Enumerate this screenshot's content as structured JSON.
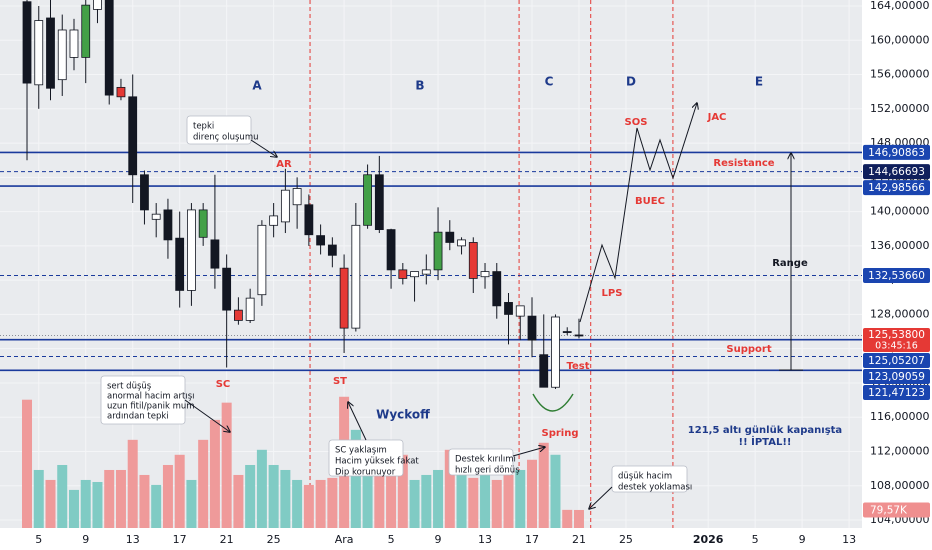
{
  "chart_data": {
    "type": "candlestick",
    "xlim": [
      -2.3,
      71.1
    ],
    "ylim": [
      103.07,
      164.7
    ],
    "yticks": [
      {
        "value": 164,
        "label": "164,00000"
      },
      {
        "value": 160,
        "label": "160,00000"
      },
      {
        "value": 156,
        "label": "156,00000"
      },
      {
        "value": 152,
        "label": "152,00000"
      },
      {
        "value": 148,
        "label": "148,00000"
      },
      {
        "value": 144,
        "label": "144,00000"
      },
      {
        "value": 140,
        "label": "140,00000"
      },
      {
        "value": 136,
        "label": "136,00000"
      },
      {
        "value": 132,
        "label": "132,00000"
      },
      {
        "value": 128,
        "label": "128,00000"
      },
      {
        "value": 124,
        "label": "124,00000"
      },
      {
        "value": 120,
        "label": "120,00000"
      },
      {
        "value": 116,
        "label": "116,00000"
      },
      {
        "value": 112,
        "label": "112,00000"
      },
      {
        "value": 108,
        "label": "108,00000"
      },
      {
        "value": 104,
        "label": "104,00000"
      }
    ],
    "xticks": [
      {
        "value": 1,
        "label": "5"
      },
      {
        "value": 5,
        "label": "9"
      },
      {
        "value": 9,
        "label": "13"
      },
      {
        "value": 13,
        "label": "17"
      },
      {
        "value": 17,
        "label": "21"
      },
      {
        "value": 21,
        "label": "25"
      },
      {
        "value": 27,
        "label": "Ara"
      },
      {
        "value": 31,
        "label": "5"
      },
      {
        "value": 35,
        "label": "9"
      },
      {
        "value": 39,
        "label": "13"
      },
      {
        "value": 43,
        "label": "17"
      },
      {
        "value": 47,
        "label": "21"
      },
      {
        "value": 51,
        "label": "25"
      },
      {
        "value": 58,
        "label": "2026",
        "bold": true
      },
      {
        "value": 62,
        "label": "5"
      },
      {
        "value": 66,
        "label": "9"
      },
      {
        "value": 70,
        "label": "13"
      }
    ],
    "grid": true,
    "candles": {
      "open": [
        164.5,
        154.8,
        162.6,
        155.4,
        158,
        158,
        163.6,
        165,
        154.5,
        153.4,
        144.3,
        139.1,
        140.2,
        136.9,
        130.8,
        137,
        136.7,
        133.4,
        128.5,
        127.3,
        130.3,
        138.4,
        138.8,
        140.8,
        140.8,
        137.2,
        136.1,
        133.4,
        126.4,
        138.4,
        144.3,
        137.9,
        133.2,
        132.4,
        132.7,
        133.2,
        137.6,
        136,
        136.4,
        132.4,
        133,
        129.4,
        127.8,
        127.8,
        123.3,
        119.5,
        126,
        125.6
      ],
      "high": [
        165.5,
        164,
        165,
        163,
        162.5,
        165,
        165.5,
        165.5,
        155.5,
        156,
        144.8,
        141,
        141.5,
        140,
        141,
        141,
        144.3,
        135,
        130,
        131,
        139,
        141,
        145,
        144,
        142,
        138.5,
        137,
        135,
        141,
        145.5,
        146.5,
        138,
        134,
        133,
        135,
        140.5,
        139,
        137,
        137,
        134,
        134,
        130.5,
        129,
        130,
        128,
        128,
        126.5,
        127.5
      ],
      "low": [
        146,
        152,
        153,
        153.5,
        156.5,
        155,
        162,
        152.5,
        153,
        141,
        138.5,
        137,
        134.5,
        128.8,
        129,
        136,
        131,
        121.8,
        126.8,
        127,
        129,
        137,
        137.5,
        138,
        136,
        135,
        133.5,
        123.5,
        126,
        138,
        137.5,
        131,
        131.5,
        129.5,
        131.5,
        132,
        135.5,
        135,
        130.5,
        131,
        127.5,
        124.5,
        125,
        123,
        119.5,
        119.3,
        125.6,
        125.2
      ],
      "close": [
        155,
        162.3,
        154.4,
        161.2,
        161.2,
        164.1,
        164.8,
        153.6,
        153.4,
        144.3,
        140.2,
        139.7,
        136.7,
        130.8,
        140.2,
        140.2,
        133.4,
        128.5,
        127.3,
        129.9,
        138.4,
        139.5,
        142.5,
        142.7,
        137.3,
        136.1,
        134.9,
        126.4,
        138.4,
        144.3,
        137.9,
        133.2,
        132.2,
        133,
        133.2,
        137.6,
        136.4,
        136.7,
        132.2,
        133,
        129,
        128,
        129,
        125,
        119.5,
        127.7,
        125.9,
        125.5
      ],
      "colors": [
        "#131722",
        "#ffffff",
        "#131722",
        "#ffffff",
        "#ffffff",
        "#43a047",
        "#ffffff",
        "#131722",
        "#e53935",
        "#131722",
        "#131722",
        "#ffffff",
        "#131722",
        "#131722",
        "#ffffff",
        "#43a047",
        "#131722",
        "#131722",
        "#e53935",
        "#ffffff",
        "#ffffff",
        "#ffffff",
        "#ffffff",
        "#ffffff",
        "#131722",
        "#131722",
        "#131722",
        "#e53935",
        "#ffffff",
        "#43a047",
        "#131722",
        "#131722",
        "#e53935",
        "#ffffff",
        "#ffffff",
        "#43a047",
        "#131722",
        "#ffffff",
        "#e53935",
        "#ffffff",
        "#131722",
        "#131722",
        "#ffffff",
        "#131722",
        "#131722",
        "#ffffff",
        "#131722",
        "#131722"
      ]
    },
    "volume": {
      "vlim": [
        0,
        600
      ],
      "values": [
        566,
        256,
        212,
        278,
        168,
        212,
        203,
        256,
        256,
        389,
        234,
        190,
        278,
        323,
        212,
        389,
        477,
        553,
        234,
        278,
        345,
        278,
        256,
        212,
        190,
        212,
        221,
        579,
        433,
        323,
        301,
        234,
        323,
        212,
        234,
        256,
        345,
        256,
        221,
        256,
        212,
        234,
        256,
        301,
        376,
        323,
        80,
        79.57
      ],
      "value_labels": [
        null,
        null,
        null,
        null,
        null,
        null,
        null,
        null,
        null,
        null,
        null,
        null,
        null,
        null,
        null,
        null,
        null,
        null,
        null,
        null,
        null,
        null,
        null,
        null,
        null,
        null,
        null,
        null,
        null,
        null,
        null,
        null,
        null,
        null,
        null,
        null,
        null,
        null,
        null,
        null,
        null,
        null,
        null,
        null,
        null,
        null,
        null,
        "79,57K"
      ],
      "colors": [
        "#ef9a9a",
        "#80cbc4",
        "#ef9a9a",
        "#80cbc4",
        "#80cbc4",
        "#80cbc4",
        "#80cbc4",
        "#ef9a9a",
        "#ef9a9a",
        "#ef9a9a",
        "#ef9a9a",
        "#80cbc4",
        "#ef9a9a",
        "#ef9a9a",
        "#80cbc4",
        "#ef9a9a",
        "#ef9a9a",
        "#ef9a9a",
        "#ef9a9a",
        "#80cbc4",
        "#80cbc4",
        "#80cbc4",
        "#80cbc4",
        "#80cbc4",
        "#ef9a9a",
        "#ef9a9a",
        "#ef9a9a",
        "#ef9a9a",
        "#80cbc4",
        "#80cbc4",
        "#ef9a9a",
        "#ef9a9a",
        "#ef9a9a",
        "#80cbc4",
        "#80cbc4",
        "#80cbc4",
        "#ef9a9a",
        "#80cbc4",
        "#ef9a9a",
        "#80cbc4",
        "#ef9a9a",
        "#ef9a9a",
        "#80cbc4",
        "#ef9a9a",
        "#ef9a9a",
        "#80cbc4",
        "#ef9a9a",
        "#ef9a9a"
      ]
    },
    "levels": [
      {
        "value": 146.90863,
        "label": "146,90863",
        "style": "solid",
        "color": "#1a45b0"
      },
      {
        "value": 144.66693,
        "label": "144,66693",
        "style": "dashed",
        "color": "#0f1f5c"
      },
      {
        "value": 142.98566,
        "label": "142,98566",
        "style": "solid",
        "color": "#1a45b0"
      },
      {
        "value": 132.5366,
        "label": "132,53660",
        "style": "dashed",
        "color": "#1a45b0"
      },
      {
        "value": 125.05207,
        "label": "125,05207",
        "style": "solid",
        "color": "#1a45b0"
      },
      {
        "value": 123.09059,
        "label": "123,09059",
        "style": "dashed",
        "color": "#1a45b0"
      },
      {
        "value": 121.47123,
        "label": "121,47123",
        "style": "solid",
        "color": "#1a45b0"
      }
    ],
    "current_price": {
      "value": 125.538,
      "label": "125,53800",
      "countdown": "03:45:16",
      "color": "#e53935"
    },
    "phase_lines": [
      24.1,
      41.9,
      48,
      55
    ],
    "phases": [
      "A",
      "B",
      "C",
      "D",
      "E"
    ],
    "events": {
      "ar": "AR",
      "sc": "SC",
      "st": "ST",
      "spring": "Spring",
      "test": "Test",
      "lps": "LPS",
      "sos": "SOS",
      "buec": "BUEC",
      "jac": "JAC",
      "resistance": "Resistance",
      "support": "Support",
      "range": "Range"
    },
    "title": "Wyckoff",
    "annotations": [
      [
        "tepki",
        "direnç oluşumu"
      ],
      [
        "sert düşüş",
        "anormal hacim artışı",
        "uzun fitil/panik mum",
        "ardından tepki"
      ],
      [
        "SC yaklaşım",
        "Hacim yüksek fakat",
        "Dip korunuyor"
      ],
      [
        "Destek kırılımı",
        "hızlı geri dönüş"
      ],
      [
        "düşük hacim",
        "destek yoklaması"
      ]
    ],
    "cancel_note": [
      "121,5 altı günlük kapanışta",
      "!! İPTAL!!"
    ]
  }
}
